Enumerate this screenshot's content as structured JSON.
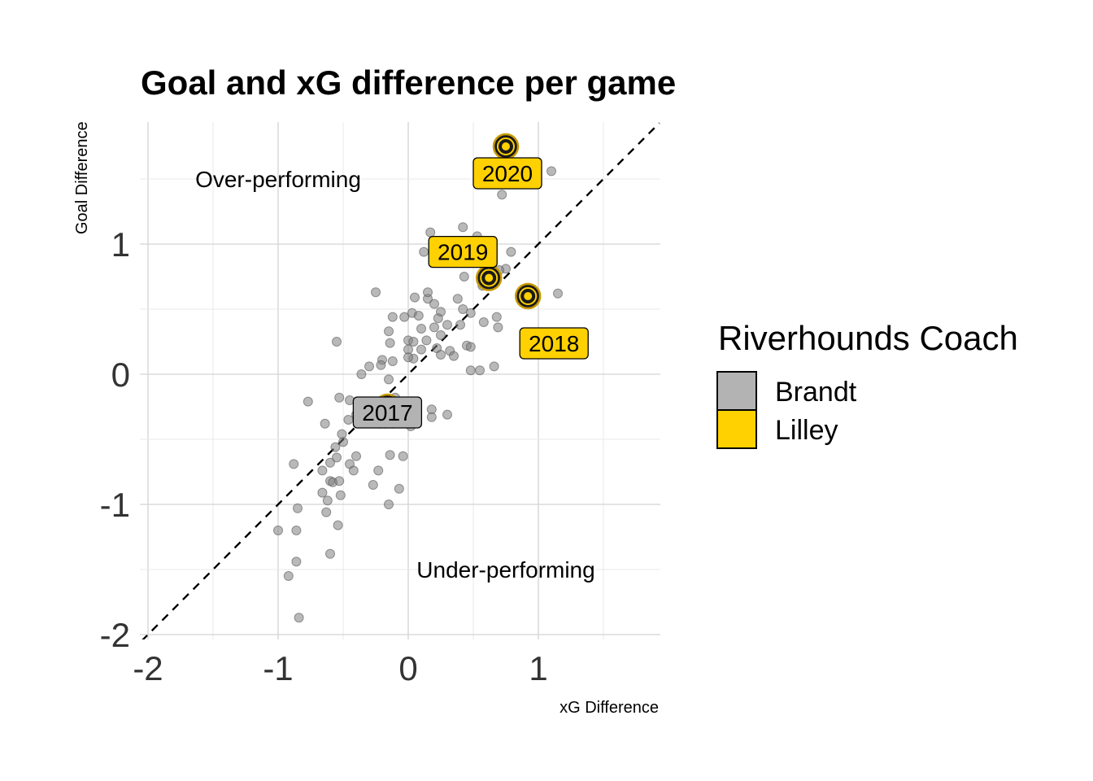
{
  "chart_data": {
    "type": "scatter",
    "title": "Goal and xG difference per game",
    "xlabel": "xG Difference",
    "ylabel": "Goal Difference",
    "xlim": [
      -2.05,
      1.93
    ],
    "ylim": [
      -2.05,
      1.93
    ],
    "x_ticks": [
      "-2",
      "-1",
      "0",
      "1"
    ],
    "y_ticks": [
      "1",
      "0",
      "-1",
      "-2"
    ],
    "reference_line": "y = x (dashed)",
    "annotations": [
      "Over-performing",
      "Under-performing"
    ],
    "legend": {
      "title": "Riverhounds Coach",
      "position": "right",
      "entries": [
        {
          "name": "Brandt",
          "color": "#B3B3B3"
        },
        {
          "name": "Lilley",
          "color": "#FFD100"
        }
      ]
    },
    "season_points": [
      {
        "year": "2017",
        "x": -0.16,
        "y": -0.25,
        "coach": "Brandt"
      },
      {
        "year": "2018",
        "x": 0.92,
        "y": 0.6,
        "coach": "Lilley"
      },
      {
        "year": "2019",
        "x": 0.62,
        "y": 0.74,
        "coach": "Lilley"
      },
      {
        "year": "2020",
        "x": 0.75,
        "y": 1.75,
        "coach": "Lilley"
      }
    ],
    "games": [
      [
        0.72,
        1.38
      ],
      [
        1.1,
        1.56
      ],
      [
        0.42,
        1.13
      ],
      [
        0.17,
        1.09
      ],
      [
        0.12,
        0.94
      ],
      [
        0.53,
        1.06
      ],
      [
        0.79,
        0.94
      ],
      [
        0.75,
        0.81
      ],
      [
        0.7,
        0.8
      ],
      [
        0.43,
        0.75
      ],
      [
        0.6,
        0.7
      ],
      [
        0.57,
        0.68
      ],
      [
        1.15,
        0.62
      ],
      [
        -0.25,
        0.63
      ],
      [
        0.05,
        0.59
      ],
      [
        0.15,
        0.58
      ],
      [
        0.15,
        0.63
      ],
      [
        0.38,
        0.58
      ],
      [
        0.2,
        0.54
      ],
      [
        0.25,
        0.48
      ],
      [
        0.42,
        0.5
      ],
      [
        0.48,
        0.47
      ],
      [
        0.03,
        0.47
      ],
      [
        0.08,
        0.45
      ],
      [
        -0.12,
        0.44
      ],
      [
        -0.03,
        0.44
      ],
      [
        0.23,
        0.43
      ],
      [
        0.58,
        0.4
      ],
      [
        0.3,
        0.38
      ],
      [
        0.4,
        0.38
      ],
      [
        0.2,
        0.36
      ],
      [
        0.25,
        0.3
      ],
      [
        0.1,
        0.35
      ],
      [
        0.68,
        0.44
      ],
      [
        0.69,
        0.36
      ],
      [
        -0.15,
        0.33
      ],
      [
        -0.55,
        0.25
      ],
      [
        0.14,
        0.26
      ],
      [
        0.0,
        0.26
      ],
      [
        -0.14,
        0.24
      ],
      [
        0.04,
        0.25
      ],
      [
        0.0,
        0.19
      ],
      [
        0.1,
        0.19
      ],
      [
        0.22,
        0.2
      ],
      [
        0.32,
        0.18
      ],
      [
        0.45,
        0.22
      ],
      [
        0.48,
        0.21
      ],
      [
        0.35,
        0.14
      ],
      [
        0.25,
        0.15
      ],
      [
        -0.2,
        0.11
      ],
      [
        -0.21,
        0.07
      ],
      [
        -0.12,
        0.1
      ],
      [
        0.04,
        0.12
      ],
      [
        0.0,
        0.13
      ],
      [
        -0.3,
        0.06
      ],
      [
        -0.36,
        0.0
      ],
      [
        0.55,
        0.03
      ],
      [
        0.66,
        0.06
      ],
      [
        0.48,
        0.03
      ],
      [
        -0.15,
        -0.04
      ],
      [
        -0.77,
        -0.21
      ],
      [
        -0.53,
        -0.18
      ],
      [
        -0.45,
        -0.2
      ],
      [
        -0.1,
        -0.18
      ],
      [
        0.02,
        -0.25
      ],
      [
        0.02,
        -0.4
      ],
      [
        0.18,
        -0.27
      ],
      [
        0.3,
        -0.31
      ],
      [
        0.18,
        -0.33
      ],
      [
        -0.4,
        -0.31
      ],
      [
        -0.46,
        -0.35
      ],
      [
        -0.25,
        -0.34
      ],
      [
        -0.22,
        -0.38
      ],
      [
        -0.12,
        -0.38
      ],
      [
        -0.18,
        -0.38
      ],
      [
        -0.51,
        -0.46
      ],
      [
        -0.64,
        -0.38
      ],
      [
        -0.5,
        -0.52
      ],
      [
        -0.56,
        -0.56
      ],
      [
        -0.55,
        -0.64
      ],
      [
        -0.4,
        -0.63
      ],
      [
        -0.14,
        -0.62
      ],
      [
        -0.04,
        -0.63
      ],
      [
        -0.6,
        -0.68
      ],
      [
        -0.45,
        -0.69
      ],
      [
        -0.42,
        -0.74
      ],
      [
        -0.88,
        -0.69
      ],
      [
        -0.66,
        -0.74
      ],
      [
        -0.23,
        -0.74
      ],
      [
        -0.6,
        -0.82
      ],
      [
        -0.58,
        -0.83
      ],
      [
        -0.53,
        -0.82
      ],
      [
        -0.27,
        -0.85
      ],
      [
        -0.07,
        -0.88
      ],
      [
        -0.66,
        -0.91
      ],
      [
        -0.52,
        -0.93
      ],
      [
        -0.62,
        -0.97
      ],
      [
        -0.15,
        -1.0
      ],
      [
        -0.85,
        -1.03
      ],
      [
        -0.63,
        -1.06
      ],
      [
        -0.54,
        -1.16
      ],
      [
        -1.0,
        -1.2
      ],
      [
        -0.86,
        -1.2
      ],
      [
        -0.6,
        -1.38
      ],
      [
        -0.86,
        -1.44
      ],
      [
        -0.92,
        -1.55
      ],
      [
        -0.84,
        -1.87
      ]
    ]
  }
}
